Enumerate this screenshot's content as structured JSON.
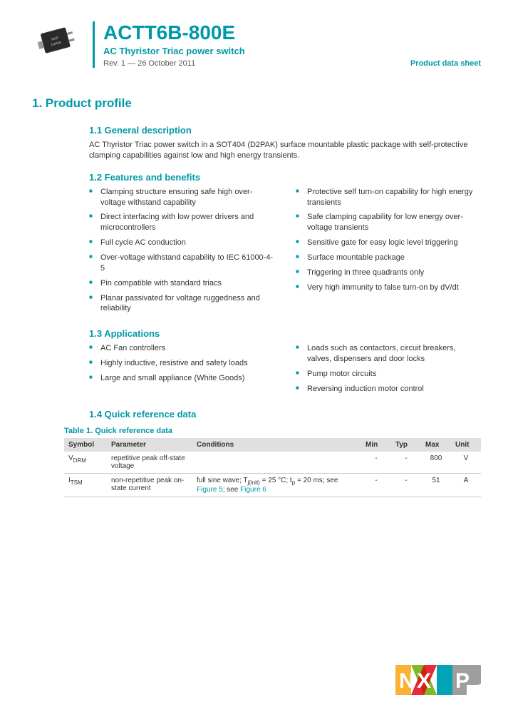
{
  "header": {
    "part_number": "ACTT6B-800E",
    "subtitle": "AC Thyristor Triac power switch",
    "revision": "Rev. 1 — 26 October 2011",
    "doc_type": "Product data sheet"
  },
  "section1": {
    "number_title": "1.   Product profile",
    "s11_title": "1.1  General description",
    "s11_body": "AC Thyristor Triac power switch in a SOT404 (D2PAK) surface mountable plastic package with self-protective clamping capabilities against low and high energy transients.",
    "s12_title": "1.2  Features and benefits",
    "features_left": [
      "Clamping structure ensuring safe high over-voltage withstand capability",
      "Direct interfacing with low power drivers and microcontrollers",
      "Full cycle AC conduction",
      "Over-voltage withstand capability to IEC 61000-4-5",
      "Pin compatible with standard triacs",
      "Planar passivated for voltage ruggedness and reliability"
    ],
    "features_right": [
      "Protective self turn-on capability for high energy transients",
      "Safe clamping capability for low energy over-voltage transients",
      "Sensitive gate for easy logic level triggering",
      "Surface mountable package",
      "Triggering in three quadrants only",
      "Very high immunity to false turn-on by dV/dt"
    ],
    "s13_title": "1.3  Applications",
    "apps_left": [
      "AC Fan controllers",
      "Highly inductive, resistive and safety loads",
      "Large and small appliance (White Goods)"
    ],
    "apps_right": [
      "Loads such as contactors, circuit breakers, valves, dispensers and door locks",
      "Pump motor circuits",
      "Reversing induction motor control"
    ],
    "s14_title": "1.4  Quick reference data"
  },
  "table": {
    "caption": "Table 1.    Quick reference data",
    "headers": [
      "Symbol",
      "Parameter",
      "Conditions",
      "Min",
      "Typ",
      "Max",
      "Unit"
    ],
    "rows": [
      {
        "symbol_main": "V",
        "symbol_sub": "DRM",
        "param": "repetitive peak off-state voltage",
        "cond_plain": "",
        "min": "-",
        "typ": "-",
        "max": "800",
        "unit": "V"
      },
      {
        "symbol_main": "I",
        "symbol_sub": "TSM",
        "param": "non-repetitive peak on-state current",
        "cond_prefix": "full sine wave; T",
        "cond_sub1": "j(init)",
        "cond_mid": " = 25 °C; t",
        "cond_sub2": "p",
        "cond_mid2": " = 20 ms; see ",
        "cond_link1": "Figure 5",
        "cond_sep": "; see ",
        "cond_link2": "Figure 6",
        "min": "-",
        "typ": "-",
        "max": "51",
        "unit": "A"
      }
    ]
  },
  "colors": {
    "accent": "#0099a8",
    "text": "#333333",
    "table_header_bg": "#e0e0e0"
  }
}
